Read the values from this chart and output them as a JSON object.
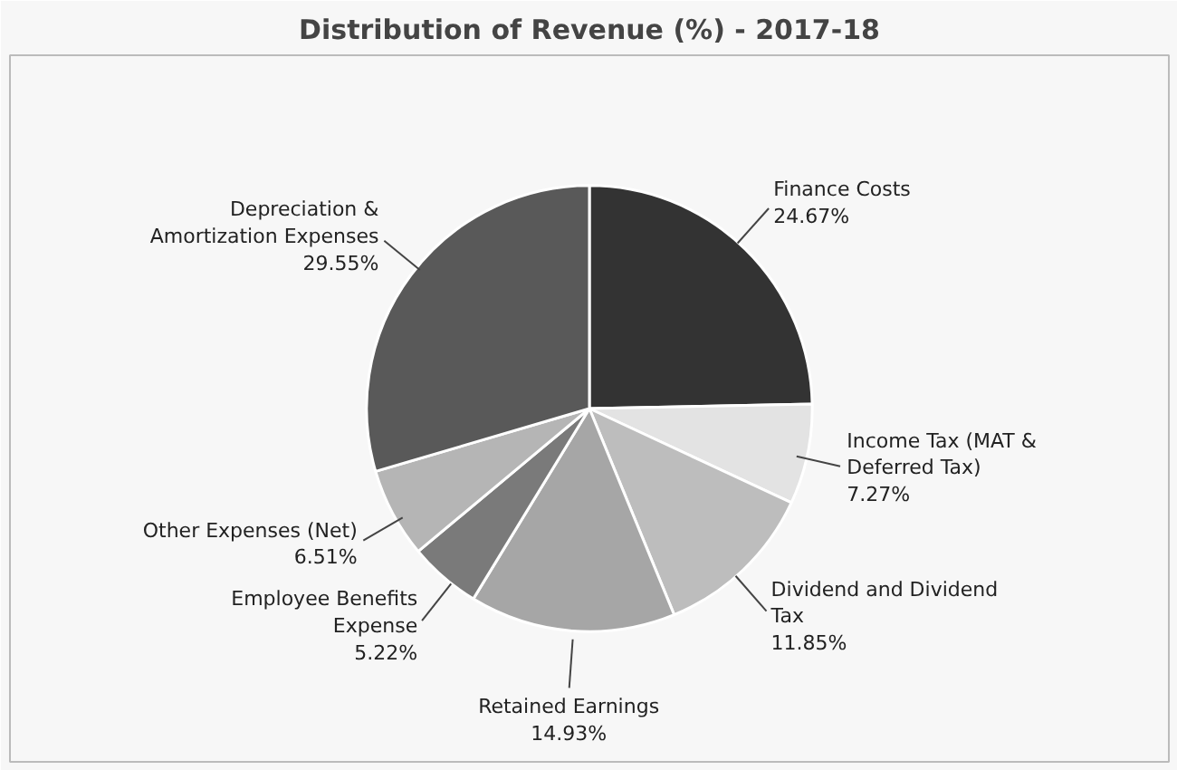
{
  "chart_data": {
    "type": "pie",
    "title": "Distribution of Revenue (%) - 2017-18",
    "categories": [
      "Finance Costs",
      "Income Tax (MAT & Deferred Tax)",
      "Dividend and Dividend Tax",
      "Retained Earnings",
      "Employee Benefits Expense",
      "Other Expenses (Net)",
      "Depreciation & Amortization Expenses"
    ],
    "values": [
      24.67,
      7.27,
      11.85,
      14.93,
      5.22,
      6.51,
      29.55
    ],
    "value_labels": [
      "24.67%",
      "7.27%",
      "11.85%",
      "14.93%",
      "5.22%",
      "6.51%",
      "29.55%"
    ],
    "colors": [
      "#333333",
      "#e3e3e3",
      "#bdbdbd",
      "#a6a6a6",
      "#7a7a7a",
      "#b5b5b5",
      "#595959"
    ]
  }
}
